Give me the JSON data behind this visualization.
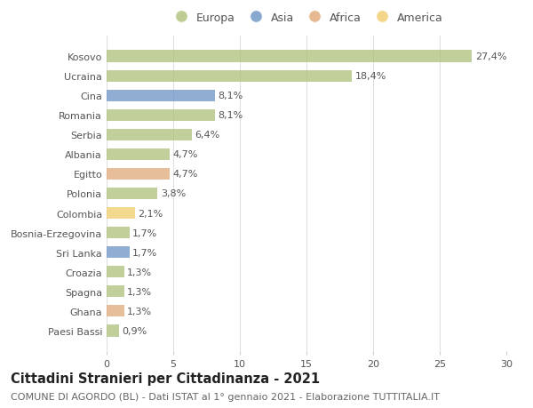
{
  "countries": [
    "Paesi Bassi",
    "Ghana",
    "Spagna",
    "Croazia",
    "Sri Lanka",
    "Bosnia-Erzegovina",
    "Colombia",
    "Polonia",
    "Egitto",
    "Albania",
    "Serbia",
    "Romania",
    "Cina",
    "Ucraina",
    "Kosovo"
  ],
  "values": [
    0.9,
    1.3,
    1.3,
    1.3,
    1.7,
    1.7,
    2.1,
    3.8,
    4.7,
    4.7,
    6.4,
    8.1,
    8.1,
    18.4,
    27.4
  ],
  "labels": [
    "0,9%",
    "1,3%",
    "1,3%",
    "1,3%",
    "1,7%",
    "1,7%",
    "2,1%",
    "3,8%",
    "4,7%",
    "4,7%",
    "6,4%",
    "8,1%",
    "8,1%",
    "18,4%",
    "27,4%"
  ],
  "continents": [
    "Europa",
    "Africa",
    "Europa",
    "Europa",
    "Asia",
    "Europa",
    "America",
    "Europa",
    "Africa",
    "Europa",
    "Europa",
    "Europa",
    "Asia",
    "Europa",
    "Europa"
  ],
  "colors": {
    "Europa": "#adc178",
    "Asia": "#6b93c4",
    "Africa": "#e0a878",
    "America": "#f0cc6a"
  },
  "legend_order": [
    "Europa",
    "Asia",
    "Africa",
    "America"
  ],
  "title": "Cittadini Stranieri per Cittadinanza - 2021",
  "subtitle": "COMUNE DI AGORDO (BL) - Dati ISTAT al 1° gennaio 2021 - Elaborazione TUTTITALIA.IT",
  "xlim": [
    0,
    30
  ],
  "xticks": [
    0,
    5,
    10,
    15,
    20,
    25,
    30
  ],
  "background_color": "#ffffff",
  "grid_color": "#e0e0e0",
  "bar_height": 0.6,
  "title_fontsize": 10.5,
  "subtitle_fontsize": 8,
  "label_fontsize": 8,
  "ytick_fontsize": 8,
  "xtick_fontsize": 8,
  "legend_fontsize": 9
}
